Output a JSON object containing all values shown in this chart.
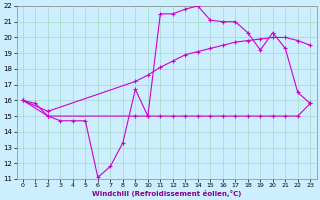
{
  "xlabel": "Windchill (Refroidissement éolien,°C)",
  "bg_color": "#cceeff",
  "grid_color": "#aaddcc",
  "line_color": "#cc00cc",
  "xlim": [
    -0.5,
    23.5
  ],
  "ylim": [
    11,
    22
  ],
  "xticks": [
    0,
    1,
    2,
    3,
    4,
    5,
    6,
    7,
    8,
    9,
    10,
    11,
    12,
    13,
    14,
    15,
    16,
    17,
    18,
    19,
    20,
    21,
    22,
    23
  ],
  "yticks": [
    11,
    12,
    13,
    14,
    15,
    16,
    17,
    18,
    19,
    20,
    21,
    22
  ],
  "line1_x": [
    0,
    1,
    2,
    3,
    4,
    5,
    6,
    7,
    8,
    9,
    10,
    11,
    12,
    13,
    14,
    15,
    16,
    17,
    18,
    19,
    20,
    21,
    22,
    23
  ],
  "line1_y": [
    16,
    15.8,
    15,
    14.7,
    14.7,
    14.7,
    11.1,
    11.8,
    13.3,
    16.7,
    15.0,
    21.5,
    21.5,
    21.8,
    22.0,
    21.1,
    21.0,
    21.0,
    20.3,
    19.2,
    20.3,
    19.3,
    16.5,
    15.8
  ],
  "line2_x": [
    0,
    2,
    9,
    10,
    11,
    12,
    13,
    14,
    15,
    16,
    17,
    18,
    19,
    20,
    21,
    22,
    23
  ],
  "line2_y": [
    16,
    15,
    15,
    15,
    15,
    15,
    15,
    15,
    15,
    15,
    15,
    15,
    15,
    15,
    15,
    15,
    15.8
  ],
  "line3_x": [
    0,
    2,
    9,
    10,
    11,
    12,
    13,
    14,
    15,
    16,
    17,
    18,
    19,
    20,
    21,
    22,
    23
  ],
  "line3_y": [
    16,
    15.3,
    17.2,
    17.6,
    18.1,
    18.5,
    18.9,
    19.1,
    19.3,
    19.5,
    19.7,
    19.8,
    19.9,
    20.0,
    20.0,
    19.8,
    19.5
  ]
}
